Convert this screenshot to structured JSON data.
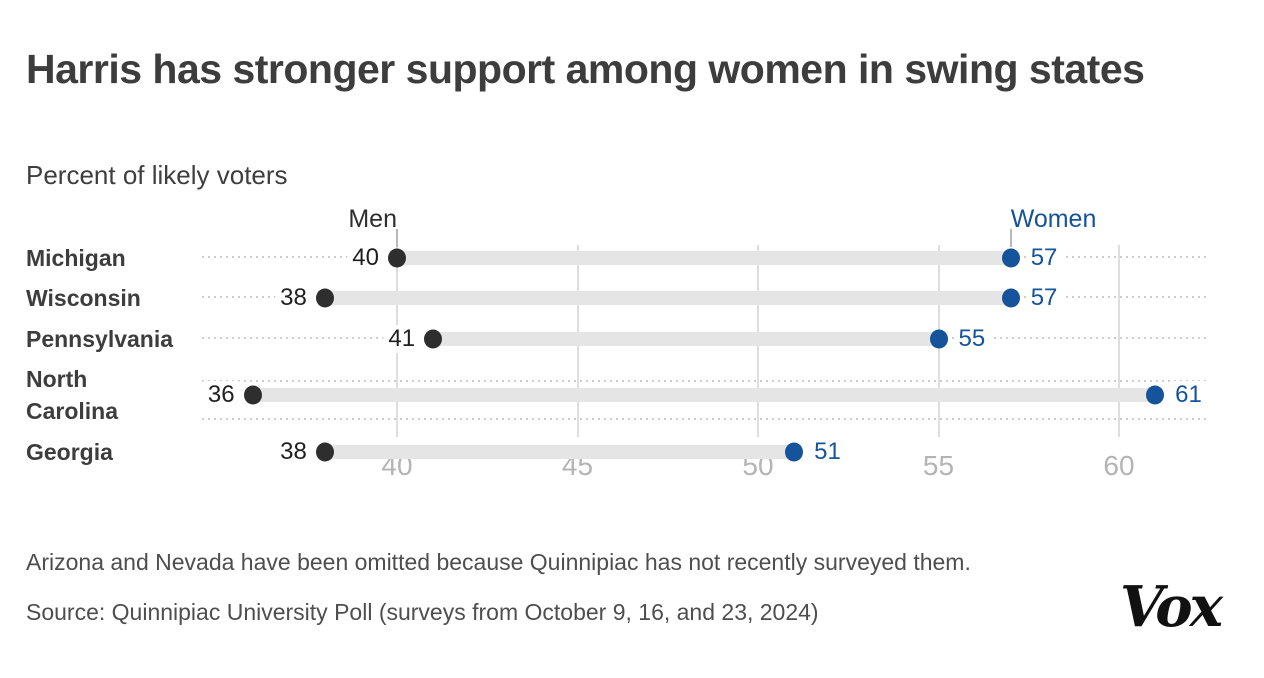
{
  "header": {
    "title": "Harris has stronger support among women in swing states",
    "subtitle": "Percent of likely voters"
  },
  "chart_data": {
    "type": "dumbbell",
    "title": "Harris has stronger support among women in swing states",
    "subtitle": "Percent of likely voters",
    "unit": "percent of likely voters",
    "categories": [
      "Michigan",
      "Wisconsin",
      "Pennsylvania",
      "North Carolina",
      "Georgia"
    ],
    "series": [
      {
        "name": "Men",
        "color": "#2e2e2e",
        "values": [
          40,
          38,
          41,
          36,
          38
        ]
      },
      {
        "name": "Women",
        "color": "#15539b",
        "values": [
          57,
          57,
          55,
          61,
          51
        ]
      }
    ],
    "x_ticks": [
      40,
      45,
      50,
      55,
      60
    ],
    "xlim": [
      34.5,
      62.5
    ],
    "grid": "vertical",
    "legend": {
      "men_label": "Men",
      "women_label": "Women",
      "position": "above first row, anchored to first-row dots"
    },
    "value_labels": "shown beside every dot"
  },
  "colors": {
    "men": "#2e2e2e",
    "women": "#15539b",
    "bar": "#e5e5e5",
    "gridline": "#dedede",
    "leader_dots": "#cdcdcd",
    "axis_text": "#b4b4b4"
  },
  "footer": {
    "note": "Arizona and Nevada have been omitted because Quinnipiac has not recently surveyed them.",
    "source": "Source: Quinnipiac University Poll (surveys from October 9, 16, and 23, 2024)",
    "logo": "Vox"
  }
}
